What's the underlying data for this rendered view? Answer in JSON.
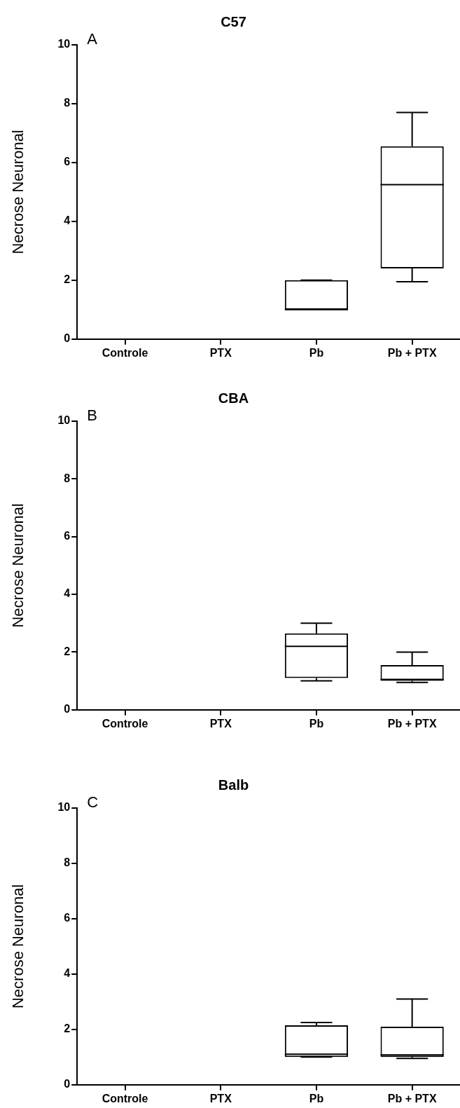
{
  "chart_data": [
    {
      "type": "box",
      "title": "C57",
      "ylabel": "Necrose Neuronal",
      "annotations": [
        "A"
      ],
      "categories": [
        "Controle",
        "PTX",
        "Pb",
        "Pb + PTX"
      ],
      "ylim": [
        0,
        10
      ],
      "yticks": [
        0,
        2,
        4,
        6,
        8,
        10
      ],
      "grid": false,
      "legend": false,
      "boxes": [
        null,
        null,
        {
          "low": 1,
          "q1": 1,
          "median": 1,
          "q3": 2,
          "high": 2
        },
        {
          "low": 1.95,
          "q1": 2.4,
          "median": 5.25,
          "q3": 6.55,
          "high": 7.7
        }
      ]
    },
    {
      "type": "box",
      "title": "CBA",
      "ylabel": "Necrose Neuronal",
      "annotations": [
        "B"
      ],
      "categories": [
        "Controle",
        "PTX",
        "Pb",
        "Pb + PTX"
      ],
      "ylim": [
        0,
        10
      ],
      "yticks": [
        0,
        2,
        4,
        6,
        8,
        10
      ],
      "grid": false,
      "legend": false,
      "boxes": [
        null,
        null,
        {
          "low": 1,
          "q1": 1.1,
          "median": 2.2,
          "q3": 2.65,
          "high": 3
        },
        {
          "low": 0.95,
          "q1": 1,
          "median": 1.05,
          "q3": 1.55,
          "high": 2
        }
      ]
    },
    {
      "type": "box",
      "title": "Balb",
      "ylabel": "Necrose Neuronal",
      "annotations": [
        "C"
      ],
      "categories": [
        "Controle",
        "PTX",
        "Pb",
        "Pb + PTX"
      ],
      "ylim": [
        0,
        10
      ],
      "yticks": [
        0,
        2,
        4,
        6,
        8,
        10
      ],
      "grid": false,
      "legend": false,
      "boxes": [
        null,
        null,
        {
          "low": 1,
          "q1": 1,
          "median": 1.1,
          "q3": 2.15,
          "high": 2.25
        },
        {
          "low": 0.95,
          "q1": 1,
          "median": 1.08,
          "q3": 2.1,
          "high": 3.1
        }
      ]
    }
  ]
}
